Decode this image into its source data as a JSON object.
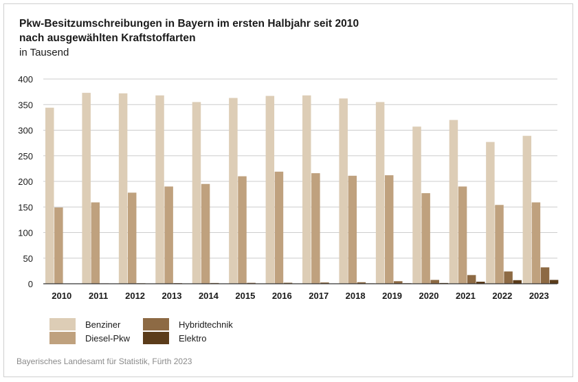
{
  "header": {
    "title_line1": "Pkw-Besitzumschreibungen in Bayern im ersten Halbjahr seit 2010",
    "title_line2": "nach ausgewählten Kraftstoffarten",
    "subtitle": "in Tausend"
  },
  "source": "Bayerisches Landesamt für Statistik, Fürth 2023",
  "colors": {
    "Benziner": "#ddcdb6",
    "Diesel-Pkw": "#bfa17e",
    "Hybridtechnik": "#8d6a44",
    "Elektro": "#5b3c1a",
    "grid": "#cccccc",
    "axis": "#333333"
  },
  "chart_data": {
    "type": "bar",
    "title": "Pkw-Besitzumschreibungen in Bayern im ersten Halbjahr seit 2010 nach ausgewählten Kraftstoffarten",
    "ylabel": "in Tausend",
    "xlabel": "",
    "ylim": [
      0,
      400
    ],
    "yticks": [
      0,
      50,
      100,
      150,
      200,
      250,
      300,
      350,
      400
    ],
    "grid": true,
    "legend_position": "bottom-left",
    "categories": [
      "2010",
      "2011",
      "2012",
      "2013",
      "2014",
      "2015",
      "2016",
      "2017",
      "2018",
      "2019",
      "2020",
      "2021",
      "2022",
      "2023"
    ],
    "series": [
      {
        "name": "Benziner",
        "values": [
          344,
          373,
          372,
          368,
          355,
          363,
          367,
          368,
          362,
          355,
          307,
          320,
          277,
          289
        ]
      },
      {
        "name": "Diesel-Pkw",
        "values": [
          149,
          159,
          178,
          190,
          195,
          210,
          219,
          216,
          211,
          212,
          177,
          190,
          154,
          159
        ]
      },
      {
        "name": "Hybridtechnik",
        "values": [
          0.5,
          0.8,
          1,
          1.2,
          1.5,
          1.8,
          2,
          2.5,
          3,
          5,
          7.5,
          17,
          24,
          32
        ]
      },
      {
        "name": "Elektro",
        "values": [
          0.1,
          0.1,
          0.2,
          0.2,
          0.3,
          0.4,
          0.4,
          0.5,
          0.8,
          1,
          1.5,
          4,
          7,
          7.5
        ]
      }
    ]
  }
}
